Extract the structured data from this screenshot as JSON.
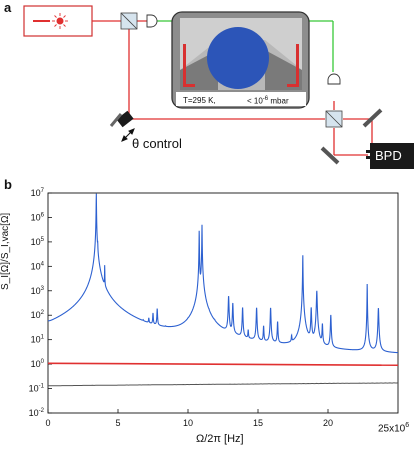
{
  "panel_a": {
    "label": "a",
    "theta_control": "θ control",
    "detector": "BPD",
    "temperature": "T=295 K,",
    "pressure_prefix": "< 10",
    "pressure_exp": "-6",
    "pressure_unit": "mbar",
    "colors": {
      "beam_red": "#e03030",
      "beam_green": "#38c838",
      "sphere_blue": "#2c55b8"
    }
  },
  "panel_b": {
    "label": "b",
    "x_multiplier_base": "25x10",
    "x_multiplier_exp": "6"
  },
  "chart_data": {
    "type": "line",
    "xlabel": "Ω/2π [Hz]",
    "ylabel": "S_I[Ω]/S_I,vac[Ω]",
    "xlim": [
      0,
      25000000
    ],
    "ylim": [
      0.01,
      10000000
    ],
    "y_scale": "log",
    "x_ticks": [
      0,
      5,
      10,
      15,
      20
    ],
    "y_tick_exponents": [
      -2,
      -1,
      0,
      1,
      2,
      3,
      4,
      5,
      6,
      7
    ],
    "series": [
      {
        "color": "#2c60d0",
        "baseline": 1.2,
        "peaks": [
          [
            0.0,
            5.0
          ],
          [
            3.45,
            10000000
          ],
          [
            3.55,
            50000
          ],
          [
            4.05,
            10000
          ],
          [
            6.8,
            7
          ],
          [
            7.2,
            30
          ],
          [
            7.5,
            80
          ],
          [
            7.8,
            150
          ],
          [
            8.4,
            3
          ],
          [
            10.0,
            3
          ],
          [
            10.8,
            300000
          ],
          [
            11.0,
            500000
          ],
          [
            11.5,
            10
          ],
          [
            11.9,
            5
          ],
          [
            12.9,
            600
          ],
          [
            13.2,
            300
          ],
          [
            13.9,
            200
          ],
          [
            14.3,
            15
          ],
          [
            14.9,
            200
          ],
          [
            15.4,
            30
          ],
          [
            15.9,
            200
          ],
          [
            16.4,
            50
          ],
          [
            17.4,
            8
          ],
          [
            18.2,
            30000
          ],
          [
            18.8,
            200
          ],
          [
            19.2,
            1000
          ],
          [
            19.6,
            40
          ],
          [
            20.2,
            100
          ],
          [
            22.8,
            2000
          ],
          [
            23.6,
            200
          ]
        ]
      },
      {
        "color": "#e03030",
        "y_start": 1.08,
        "y_end": 0.9
      },
      {
        "color": "#555555",
        "y_start": 0.13,
        "y_end": 0.17
      }
    ]
  }
}
